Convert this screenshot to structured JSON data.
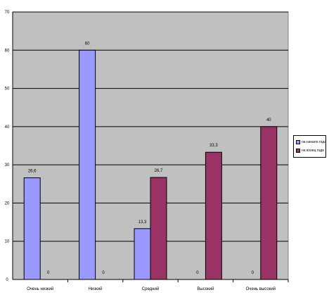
{
  "chart_data": {
    "type": "bar",
    "categories": [
      "Очень низкий",
      "Низкий",
      "Средний",
      "Высокий",
      "Очень высокий"
    ],
    "series": [
      {
        "name": "на начало года",
        "values": [
          26.6,
          60,
          13.3,
          0,
          0
        ],
        "labels": [
          "26,6",
          "60",
          "13,3",
          "0",
          "0"
        ],
        "color": "#9999ff"
      },
      {
        "name": "на конец года",
        "values": [
          0,
          0,
          26.7,
          33.3,
          40
        ],
        "labels": [
          "0",
          "0",
          "26,7",
          "33,3",
          "40"
        ],
        "color": "#993366"
      }
    ],
    "yticks": [
      0,
      10,
      20,
      30,
      40,
      50,
      60,
      70
    ],
    "ylim": [
      0,
      70
    ],
    "grid": true,
    "plot_background": "#c0c0c0",
    "legend_position": "right",
    "title": "",
    "xlabel": "",
    "ylabel": ""
  }
}
